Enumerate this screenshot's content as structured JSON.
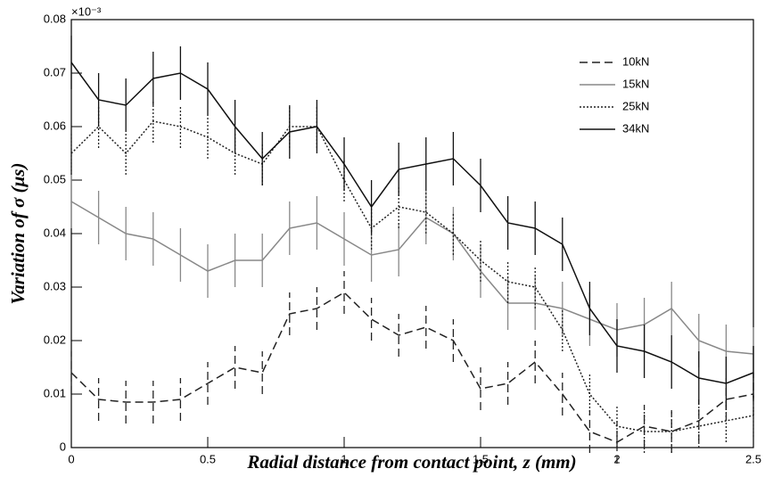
{
  "chart_data": {
    "type": "line",
    "y_multiplier": "×10⁻³",
    "x_label": "Radial distance from contact point, z (mm)",
    "y_label": "Variation of  σ (μs)",
    "x": [
      0,
      0.1,
      0.2,
      0.3,
      0.4,
      0.5,
      0.6,
      0.7,
      0.8,
      0.9,
      1.0,
      1.1,
      1.2,
      1.3,
      1.4,
      1.5,
      1.6,
      1.7,
      1.8,
      1.9,
      2.0,
      2.1,
      2.2,
      2.3,
      2.4,
      2.5
    ],
    "series": [
      {
        "name": "10kN",
        "color": "#222222",
        "dash": "dashed",
        "values": [
          0.014,
          0.009,
          0.0085,
          0.0085,
          0.009,
          0.012,
          0.015,
          0.014,
          0.025,
          0.026,
          0.029,
          0.024,
          0.021,
          0.0225,
          0.02,
          0.011,
          0.012,
          0.016,
          0.01,
          0.003,
          0.001,
          0.004,
          0.003,
          0.005,
          0.009,
          0.01
        ],
        "errors": [
          0.004,
          0.004,
          0.004,
          0.004,
          0.004,
          0.004,
          0.004,
          0.004,
          0.004,
          0.004,
          0.004,
          0.004,
          0.004,
          0.004,
          0.004,
          0.004,
          0.004,
          0.004,
          0.004,
          0.004,
          0.004,
          0.004,
          0.004,
          0.004,
          0.004,
          0.004
        ]
      },
      {
        "name": "15kN",
        "color": "#888888",
        "dash": "solid",
        "values": [
          0.046,
          0.043,
          0.04,
          0.039,
          0.036,
          0.033,
          0.035,
          0.035,
          0.041,
          0.042,
          0.039,
          0.036,
          0.037,
          0.043,
          0.04,
          0.033,
          0.027,
          0.027,
          0.026,
          0.024,
          0.022,
          0.023,
          0.026,
          0.02,
          0.018,
          0.0175
        ],
        "errors": [
          0.005,
          0.005,
          0.005,
          0.005,
          0.005,
          0.005,
          0.005,
          0.005,
          0.005,
          0.005,
          0.005,
          0.005,
          0.005,
          0.005,
          0.005,
          0.005,
          0.005,
          0.005,
          0.005,
          0.005,
          0.005,
          0.005,
          0.005,
          0.005,
          0.005,
          0.005
        ]
      },
      {
        "name": "25kN",
        "color": "#222222",
        "dash": "dotted",
        "values": [
          0.055,
          0.06,
          0.055,
          0.061,
          0.06,
          0.058,
          0.055,
          0.053,
          0.06,
          0.06,
          0.05,
          0.041,
          0.045,
          0.044,
          0.04,
          0.035,
          0.031,
          0.03,
          0.022,
          0.01,
          0.004,
          0.003,
          0.003,
          0.004,
          0.005,
          0.006
        ],
        "errors": [
          0.004,
          0.004,
          0.004,
          0.004,
          0.004,
          0.004,
          0.004,
          0.004,
          0.004,
          0.004,
          0.004,
          0.004,
          0.004,
          0.004,
          0.004,
          0.004,
          0.004,
          0.004,
          0.004,
          0.004,
          0.004,
          0.004,
          0.004,
          0.004,
          0.004,
          0.004
        ]
      },
      {
        "name": "34kN",
        "color": "#111111",
        "dash": "solid",
        "values": [
          0.072,
          0.065,
          0.064,
          0.069,
          0.07,
          0.067,
          0.06,
          0.054,
          0.059,
          0.06,
          0.053,
          0.045,
          0.052,
          0.053,
          0.054,
          0.049,
          0.042,
          0.041,
          0.038,
          0.026,
          0.019,
          0.018,
          0.016,
          0.013,
          0.012,
          0.014
        ],
        "errors": [
          0.005,
          0.005,
          0.005,
          0.005,
          0.005,
          0.005,
          0.005,
          0.005,
          0.005,
          0.005,
          0.005,
          0.005,
          0.005,
          0.005,
          0.005,
          0.005,
          0.005,
          0.005,
          0.005,
          0.005,
          0.005,
          0.005,
          0.005,
          0.005,
          0.005,
          0.005
        ]
      }
    ],
    "xlim": [
      0,
      2.5
    ],
    "xticks": [
      0,
      0.5,
      1,
      1.5,
      2,
      2.5
    ],
    "ylim": [
      0,
      0.08
    ],
    "yticks": [
      0,
      0.01,
      0.02,
      0.03,
      0.04,
      0.05,
      0.06,
      0.07,
      0.08
    ],
    "legend": "upper right",
    "grid": false
  }
}
